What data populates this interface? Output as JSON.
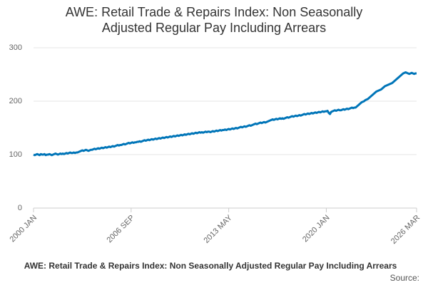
{
  "chart_data": {
    "type": "line",
    "title": [
      "AWE: Retail Trade & Repairs Index: Non Seasonally",
      "Adjusted Regular Pay Including Arrears"
    ],
    "caption": "AWE: Retail Trade & Repairs Index: Non Seasonally Adjusted Regular Pay Including Arrears",
    "source": "Source:",
    "color": "#0075b8",
    "ylim": [
      0,
      300
    ],
    "yticks": [
      0,
      100,
      200,
      300
    ],
    "grid": true,
    "categories": [
      "2000 JAN",
      null,
      null,
      null,
      null,
      null,
      null,
      null,
      null,
      null,
      null,
      null,
      null,
      null,
      null,
      null,
      null,
      null,
      null,
      null,
      null,
      null,
      null,
      null,
      null,
      null,
      null,
      null,
      null,
      null,
      null,
      null,
      null,
      null,
      null,
      null,
      null,
      null,
      null,
      null,
      null,
      null,
      null,
      null,
      null,
      null,
      null,
      null,
      null,
      null,
      null,
      null,
      null,
      null,
      null,
      null,
      null,
      null,
      null,
      null,
      null,
      null,
      null,
      null,
      null,
      null,
      null,
      null,
      null,
      null,
      null,
      null,
      null,
      null,
      null,
      null,
      null,
      null,
      null,
      null,
      "2006 SEP",
      null,
      null,
      null,
      null,
      null,
      null,
      null,
      null,
      null,
      null,
      null,
      null,
      null,
      null,
      null,
      null,
      null,
      null,
      null,
      null,
      null,
      null,
      null,
      null,
      null,
      null,
      null,
      null,
      null,
      null,
      null,
      null,
      null,
      null,
      null,
      null,
      null,
      null,
      null,
      null,
      null,
      null,
      null,
      null,
      null,
      null,
      null,
      null,
      null,
      null,
      null,
      null,
      null,
      null,
      null,
      null,
      null,
      null,
      null,
      null,
      null,
      null,
      null,
      null,
      null,
      null,
      null,
      null,
      null,
      null,
      null,
      null,
      null,
      null,
      null,
      null,
      null,
      null,
      null,
      "2013 MAY",
      null,
      null,
      null,
      null,
      null,
      null,
      null,
      null,
      null,
      null,
      null,
      null,
      null,
      null,
      null,
      null,
      null,
      null,
      null,
      null,
      null,
      null,
      null,
      null,
      null,
      null,
      null,
      null,
      null,
      null,
      null,
      null,
      null,
      null,
      null,
      null,
      null,
      null,
      null,
      null,
      null,
      null,
      null,
      null,
      null,
      null,
      null,
      null,
      null,
      null,
      null,
      null,
      null,
      null,
      null,
      null,
      null,
      null,
      null,
      null,
      null,
      null,
      null,
      null,
      null,
      null,
      null,
      null,
      null,
      null,
      null,
      null,
      null,
      null,
      null,
      null,
      null,
      null,
      null,
      "2020 JAN",
      null,
      null,
      null,
      null,
      null,
      null,
      null,
      null,
      null,
      null,
      null,
      null,
      null,
      null,
      null,
      null,
      null,
      null,
      null,
      null,
      null,
      null,
      null,
      null,
      null,
      null,
      null,
      null,
      null,
      null,
      null,
      null,
      null,
      null,
      null,
      null,
      null,
      null,
      null,
      null,
      null,
      null,
      null,
      null,
      null,
      null,
      null,
      null,
      null,
      null,
      null,
      null,
      null,
      null,
      null,
      null,
      null,
      null,
      null,
      null,
      null,
      null,
      null,
      null,
      null,
      null,
      null,
      null,
      null,
      null,
      null,
      null,
      null,
      "2026 MAR"
    ],
    "values": [
      100,
      99,
      100,
      101,
      100,
      99,
      101,
      100,
      100,
      101,
      99,
      100,
      100,
      101,
      100,
      99,
      100,
      101,
      102,
      101,
      100,
      101,
      102,
      101,
      102,
      101,
      102,
      103,
      102,
      103,
      104,
      103,
      103,
      104,
      103,
      104,
      104,
      105,
      106,
      107,
      108,
      107,
      108,
      109,
      108,
      107,
      108,
      109,
      109,
      110,
      111,
      110,
      111,
      112,
      111,
      112,
      113,
      112,
      113,
      114,
      113,
      114,
      115,
      114,
      115,
      116,
      115,
      116,
      117,
      118,
      117,
      118,
      118,
      119,
      120,
      119,
      120,
      121,
      122,
      121,
      122,
      123,
      122,
      123,
      123,
      124,
      124,
      125,
      124,
      125,
      126,
      127,
      126,
      127,
      128,
      127,
      128,
      129,
      128,
      129,
      130,
      129,
      130,
      131,
      130,
      131,
      132,
      131,
      132,
      133,
      132,
      133,
      134,
      133,
      134,
      135,
      134,
      135,
      136,
      135,
      136,
      137,
      136,
      137,
      138,
      137,
      138,
      139,
      138,
      139,
      140,
      139,
      140,
      141,
      140,
      141,
      142,
      141,
      142,
      141,
      142,
      143,
      142,
      143,
      143,
      142,
      143,
      144,
      143,
      144,
      145,
      144,
      145,
      146,
      145,
      146,
      146,
      147,
      146,
      147,
      148,
      147,
      148,
      149,
      148,
      149,
      150,
      149,
      150,
      151,
      152,
      151,
      152,
      153,
      152,
      153,
      154,
      155,
      154,
      155,
      156,
      157,
      158,
      157,
      158,
      159,
      160,
      159,
      160,
      161,
      160,
      161,
      162,
      163,
      164,
      165,
      166,
      165,
      166,
      167,
      166,
      167,
      168,
      167,
      168,
      167,
      168,
      169,
      170,
      169,
      170,
      171,
      172,
      171,
      172,
      173,
      172,
      173,
      174,
      173,
      174,
      175,
      176,
      175,
      176,
      177,
      176,
      177,
      178,
      177,
      178,
      179,
      178,
      179,
      180,
      179,
      180,
      181,
      180,
      181,
      181,
      182,
      178,
      176,
      180,
      181,
      182,
      183,
      182,
      183,
      184,
      183,
      183,
      184,
      185,
      184,
      185,
      186,
      185,
      186,
      187,
      188,
      187,
      188,
      188,
      190,
      192,
      194,
      196,
      198,
      199,
      200,
      202,
      203,
      204,
      206,
      208,
      210,
      212,
      214,
      216,
      218,
      219,
      220,
      221,
      222,
      224,
      226,
      228,
      229,
      230,
      231,
      232,
      233,
      234,
      236,
      238,
      240,
      242,
      244,
      246,
      248,
      250,
      252,
      253,
      254,
      253,
      252,
      251,
      252,
      253,
      252,
      251,
      252,
      252
    ]
  }
}
